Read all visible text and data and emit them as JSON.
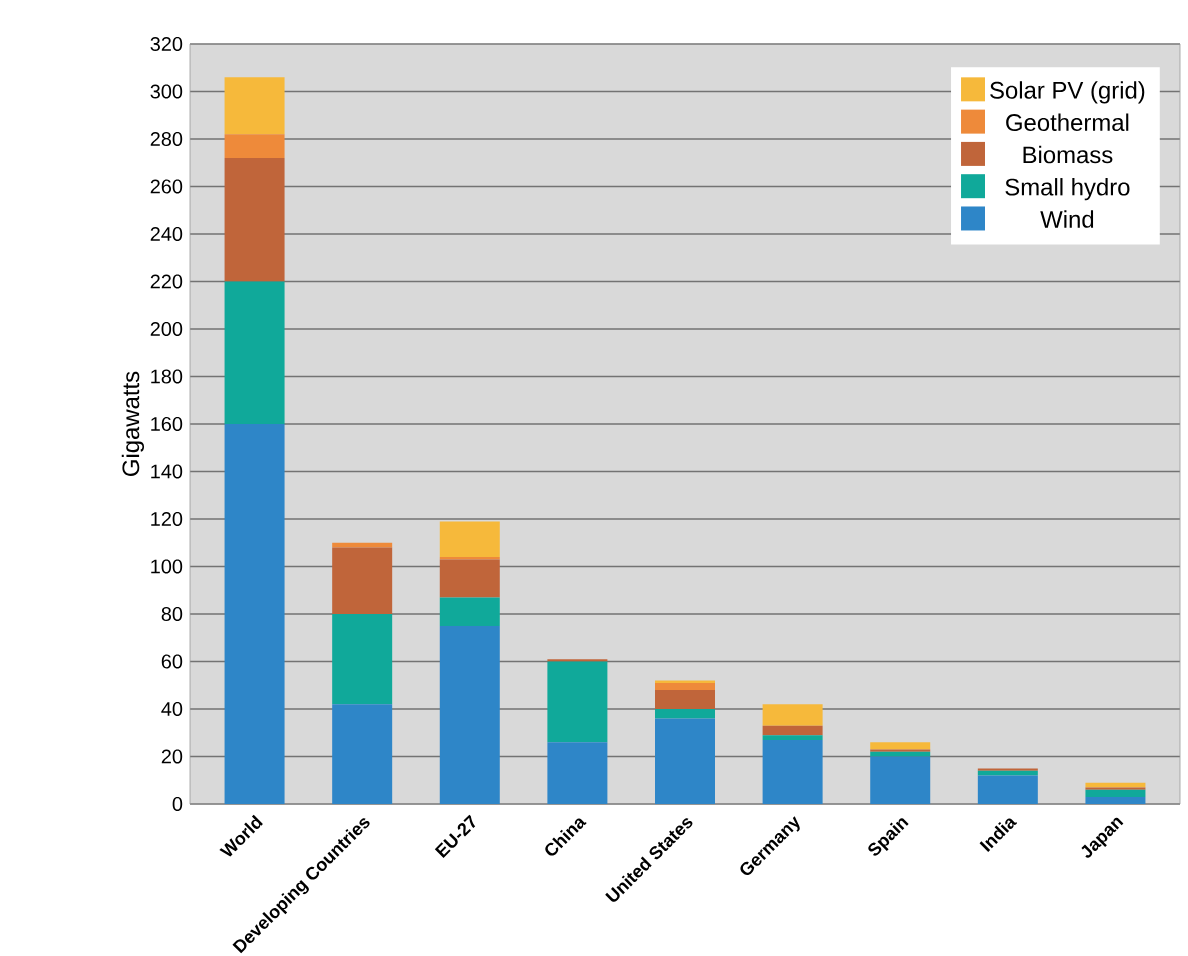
{
  "chart_data": {
    "type": "bar",
    "stacked": true,
    "ylabel": "Gigawatts",
    "categories": [
      "World",
      "Developing Countries",
      "EU-27",
      "China",
      "United States",
      "Germany",
      "Spain",
      "India",
      "Japan"
    ],
    "series": [
      {
        "name": "Wind",
        "color": "#2e86c8",
        "values": [
          160,
          42,
          75,
          26,
          36,
          27,
          20,
          12,
          3
        ]
      },
      {
        "name": "Small hydro",
        "color": "#10a99a",
        "values": [
          60,
          38,
          12,
          34,
          4,
          2,
          2,
          2,
          3
        ]
      },
      {
        "name": "Biomass",
        "color": "#c0653a",
        "values": [
          52,
          28,
          16,
          1,
          8,
          4,
          1,
          1,
          1
        ]
      },
      {
        "name": "Geothermal",
        "color": "#ee8a3a",
        "values": [
          10,
          2,
          1,
          0,
          3,
          0,
          0,
          0,
          0
        ]
      },
      {
        "name": "Solar PV (grid)",
        "color": "#f6b93b",
        "values": [
          24,
          0,
          15,
          0,
          1,
          9,
          3,
          0,
          2
        ]
      }
    ],
    "ylim": [
      0,
      320
    ],
    "yticks": [
      0,
      20,
      40,
      60,
      80,
      100,
      120,
      140,
      160,
      180,
      200,
      220,
      240,
      260,
      280,
      300,
      320
    ],
    "grid": "y",
    "legend": "top right"
  }
}
